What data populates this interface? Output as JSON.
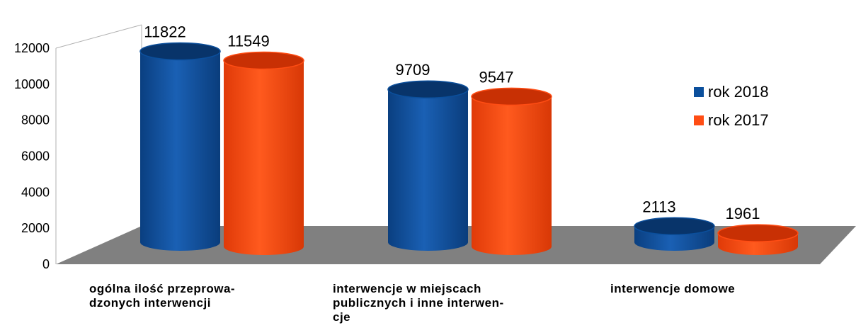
{
  "chart_data": {
    "type": "bar",
    "categories": [
      "ogólna ilość przeprowa-\ndzonych interwencji",
      " interwencje w miejscach\npublicznych i inne interwen-\ncje",
      "interwencje domowe"
    ],
    "series": [
      {
        "name": "rok 2018",
        "values": [
          11822,
          9709,
          2113
        ]
      },
      {
        "name": "rok 2017",
        "values": [
          11549,
          9547,
          1961
        ]
      }
    ],
    "yticks": [
      0,
      2000,
      4000,
      6000,
      8000,
      10000,
      12000
    ],
    "ylim": [
      0,
      12000
    ],
    "legend_position": "right",
    "style": "3d-cylinder",
    "colors": {
      "rok 2018": "#0b4f9c",
      "rok 2017": "#ff4d14",
      "floor": "#808080"
    }
  }
}
